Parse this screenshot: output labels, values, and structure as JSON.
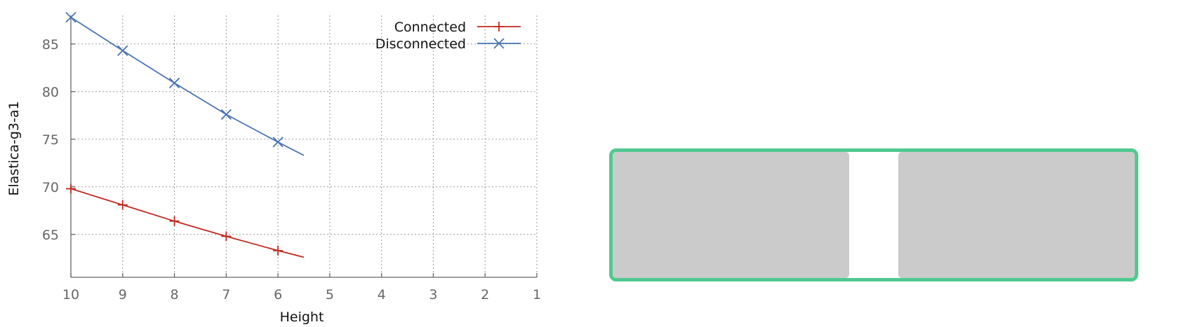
{
  "chart_data": {
    "type": "line",
    "title": "",
    "xlabel": "Height",
    "ylabel": "Elastica-g3-a1",
    "xlim": [
      10,
      1
    ],
    "ylim": [
      60.5,
      88
    ],
    "x_ticks": [
      10,
      9,
      8,
      7,
      6,
      5,
      4,
      3,
      2,
      1
    ],
    "y_ticks": [
      65,
      70,
      75,
      80,
      85
    ],
    "grid": true,
    "legend_position": "top-right",
    "series": [
      {
        "name": "Connected",
        "color": "#c0281e",
        "marker": "plus",
        "x": [
          10,
          9,
          8,
          7,
          6,
          5.5
        ],
        "y": [
          69.8,
          68.1,
          66.4,
          64.8,
          63.3,
          62.6
        ],
        "marker_x": [
          10,
          9,
          8,
          7,
          6
        ]
      },
      {
        "name": "Disconnected",
        "color": "#4a74b3",
        "marker": "cross",
        "x": [
          10,
          9,
          8,
          7,
          6,
          5.5
        ],
        "y": [
          87.8,
          84.3,
          80.9,
          77.6,
          74.7,
          73.3
        ],
        "marker_x": [
          10,
          9,
          8,
          7,
          6
        ]
      }
    ]
  },
  "diagram": {
    "frame_color": "#4fca8f",
    "block_color": "#cbcbcb"
  }
}
